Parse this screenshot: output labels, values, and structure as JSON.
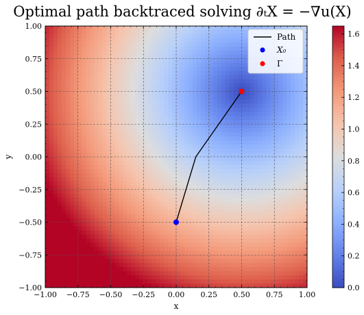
{
  "chart_data": {
    "type": "heatmap",
    "title": "Optimal path backtraced solving ∂ₜX = −∇u(X)",
    "xlabel": "x",
    "ylabel": "y",
    "xlim": [
      -1.0,
      1.0
    ],
    "ylim": [
      -1.0,
      1.0
    ],
    "grid": true,
    "x_ticks": [
      "−1.00",
      "−0.75",
      "−0.50",
      "−0.25",
      "0.00",
      "0.25",
      "0.50",
      "0.75",
      "1.00"
    ],
    "y_ticks": [
      "−1.00",
      "−0.75",
      "−0.50",
      "−0.25",
      "0.00",
      "0.25",
      "0.50",
      "0.75",
      "1.00"
    ],
    "colormap": "coolwarm",
    "colorbar": {
      "range": [
        0.0,
        1.65
      ],
      "ticks": [
        "0.0",
        "0.2",
        "0.4",
        "0.6",
        "0.8",
        "1.0",
        "1.2",
        "1.4",
        "1.6"
      ]
    },
    "field": {
      "description_values": "u(x,y) = |(x,y) − Γ| ; min 0 at Γ, max ≈1.58 at (−1,−1)",
      "center": [
        0.5,
        0.5
      ]
    },
    "path": {
      "name": "Path",
      "x": [
        0.0,
        0.15,
        0.5
      ],
      "y": [
        -0.5,
        0.0,
        0.5
      ],
      "color": "#000000"
    },
    "points": [
      {
        "name": "X₀",
        "x": 0.0,
        "y": -0.5,
        "color": "#0000ff"
      },
      {
        "name": "Γ",
        "x": 0.5,
        "y": 0.5,
        "color": "#ff0000"
      }
    ],
    "legend": {
      "placement": "top-right",
      "entries": [
        "Path",
        "X₀",
        "Γ"
      ]
    }
  }
}
